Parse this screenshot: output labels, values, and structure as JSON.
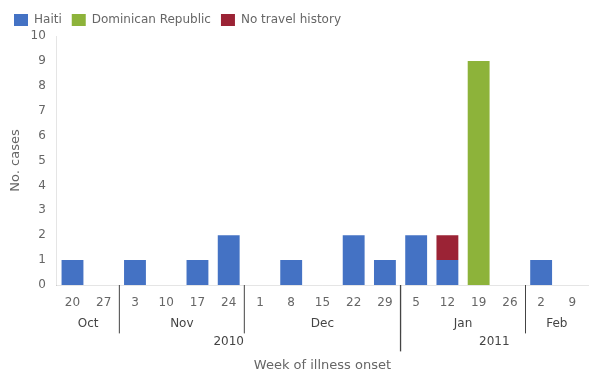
{
  "chart_data": {
    "type": "bar",
    "stacked": true,
    "grid": false,
    "legend": "upper left",
    "xlabel": "Week of illness onset",
    "ylabel": "No. cases",
    "categories": [
      "20",
      "27",
      "3",
      "10",
      "17",
      "24",
      "1",
      "8",
      "15",
      "22",
      "29",
      "5",
      "12",
      "19",
      "26",
      "2",
      "9"
    ],
    "series": [
      {
        "name": "Haiti",
        "color": "#4472C4",
        "values": [
          1,
          0,
          1,
          0,
          1,
          2,
          0,
          1,
          0,
          2,
          1,
          2,
          1,
          0,
          0,
          1,
          0
        ]
      },
      {
        "name": "Dominican Republic",
        "color": "#8DB33A",
        "values": [
          0,
          0,
          0,
          0,
          0,
          0,
          0,
          0,
          0,
          0,
          0,
          0,
          0,
          9,
          0,
          0,
          0
        ]
      },
      {
        "name": "No travel history",
        "color": "#9B2335",
        "values": [
          0,
          0,
          0,
          0,
          0,
          0,
          0,
          0,
          0,
          0,
          0,
          0,
          1,
          0,
          0,
          0,
          0
        ]
      }
    ],
    "ylim": [
      0,
      10
    ],
    "yticks": [
      0,
      1,
      2,
      3,
      4,
      5,
      6,
      7,
      8,
      9,
      10
    ],
    "category_groups": [
      [
        {
          "label": "Oct",
          "from": "20",
          "to": "27"
        },
        {
          "label": "Nov",
          "from": "3",
          "to": "24"
        },
        {
          "label": "Dec",
          "from": "1",
          "to": "29"
        },
        {
          "label": "Jan",
          "from": "5",
          "to": "26"
        },
        {
          "label": "Feb",
          "from": "2",
          "to": "9"
        }
      ],
      [
        {
          "label": "2010",
          "from": "20",
          "to": "29"
        },
        {
          "label": "2011",
          "from": "5",
          "to": "9"
        }
      ]
    ]
  }
}
